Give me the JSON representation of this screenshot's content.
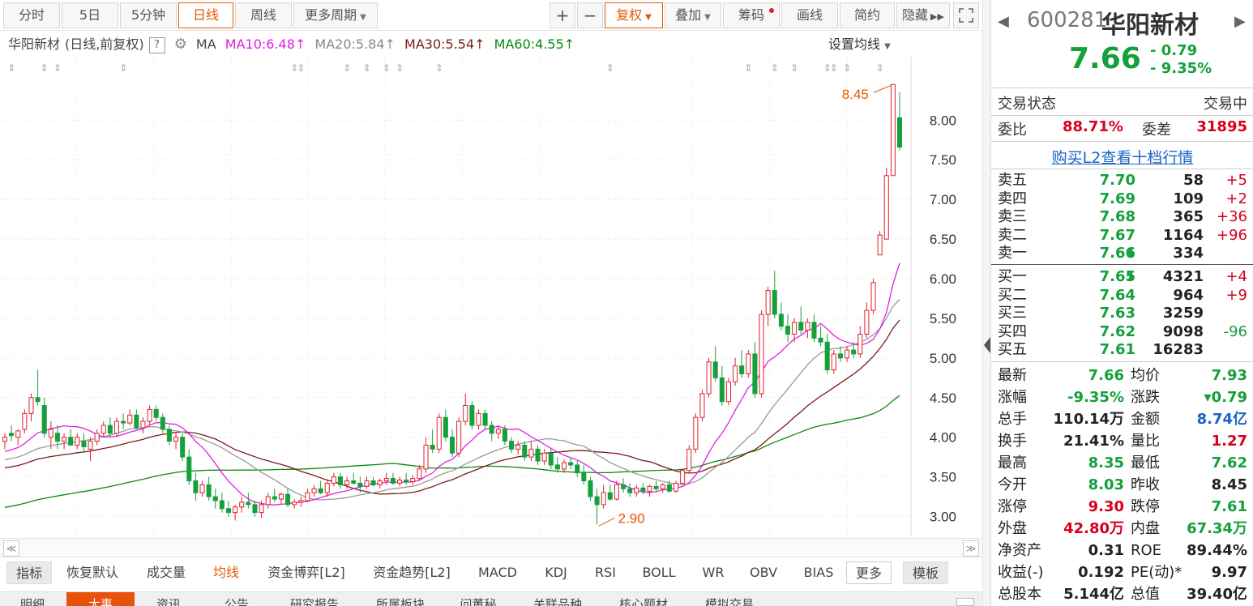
{
  "toolbar": {
    "tabs": [
      "分时",
      "5日",
      "5分钟",
      "日线",
      "周线",
      "更多周期"
    ],
    "active_tab": "日线",
    "zoom_in": "+",
    "zoom_out": "−",
    "fuquan": "复权",
    "overlay": "叠加",
    "chips": "筹码",
    "draw": "画线",
    "simple": "简约",
    "hide": "隐藏"
  },
  "ma_line": {
    "name": "华阳新材",
    "mode": "(日线,前复权)",
    "help": "?",
    "ma_label": "MA",
    "ma10": "MA10:6.48",
    "ma20": "MA20:5.84",
    "ma30": "MA30:5.54",
    "ma60": "MA60:4.55",
    "up_arrow": "↑",
    "settings": "设置均线"
  },
  "colors": {
    "up": "#e0202b",
    "down": "#14a03a",
    "ma10": "#e020e0",
    "ma20": "#999999",
    "ma30": "#7a1a1a",
    "ma60": "#0a8a0a",
    "accent": "#e05a00"
  },
  "chart_data": {
    "type": "candlestick",
    "ymin": 2.75,
    "ymax": 8.8,
    "y_ticks": [
      "8.00",
      "7.50",
      "7.00",
      "6.50",
      "6.00",
      "5.50",
      "5.00",
      "4.50",
      "4.00",
      "3.50",
      "3.00"
    ],
    "annotations": {
      "high": "8.45",
      "low": "2.90"
    },
    "ohlc": [
      [
        3.95,
        4.05,
        3.85,
        4.0
      ],
      [
        4.05,
        4.15,
        3.95,
        4.02
      ],
      [
        4.0,
        4.1,
        3.9,
        4.08
      ],
      [
        4.1,
        4.35,
        4.05,
        4.3
      ],
      [
        4.3,
        4.55,
        4.2,
        4.5
      ],
      [
        4.5,
        4.85,
        4.4,
        4.45
      ],
      [
        4.4,
        4.5,
        4.0,
        4.05
      ],
      [
        4.0,
        4.2,
        3.85,
        4.1
      ],
      [
        4.05,
        4.15,
        3.85,
        3.95
      ],
      [
        3.95,
        4.05,
        3.85,
        4.0
      ],
      [
        4.0,
        4.1,
        3.9,
        3.9
      ],
      [
        3.9,
        4.05,
        3.85,
        4.0
      ],
      [
        3.95,
        4.05,
        3.8,
        3.88
      ],
      [
        3.85,
        4.0,
        3.7,
        3.95
      ],
      [
        3.95,
        4.1,
        3.9,
        4.05
      ],
      [
        4.05,
        4.2,
        4.0,
        4.15
      ],
      [
        4.15,
        4.25,
        4.0,
        4.05
      ],
      [
        4.05,
        4.25,
        4.0,
        4.2
      ],
      [
        4.2,
        4.3,
        4.1,
        4.18
      ],
      [
        4.18,
        4.35,
        4.15,
        4.28
      ],
      [
        4.28,
        4.35,
        4.1,
        4.12
      ],
      [
        4.12,
        4.25,
        4.05,
        4.2
      ],
      [
        4.2,
        4.4,
        4.15,
        4.35
      ],
      [
        4.35,
        4.4,
        4.2,
        4.25
      ],
      [
        4.25,
        4.3,
        4.05,
        4.1
      ],
      [
        4.1,
        4.15,
        3.9,
        3.95
      ],
      [
        3.95,
        4.05,
        3.85,
        4.0
      ],
      [
        4.0,
        4.05,
        3.7,
        3.75
      ],
      [
        3.75,
        3.85,
        3.4,
        3.45
      ],
      [
        3.45,
        3.55,
        3.2,
        3.3
      ],
      [
        3.3,
        3.45,
        3.25,
        3.4
      ],
      [
        3.4,
        3.5,
        3.2,
        3.25
      ],
      [
        3.25,
        3.35,
        3.1,
        3.2
      ],
      [
        3.2,
        3.3,
        3.05,
        3.1
      ],
      [
        3.1,
        3.2,
        3.0,
        3.05
      ],
      [
        3.05,
        3.15,
        2.95,
        3.12
      ],
      [
        3.12,
        3.25,
        3.05,
        3.18
      ],
      [
        3.18,
        3.3,
        3.1,
        3.15
      ],
      [
        3.15,
        3.2,
        3.0,
        3.05
      ],
      [
        3.05,
        3.2,
        2.98,
        3.15
      ],
      [
        3.15,
        3.3,
        3.1,
        3.25
      ],
      [
        3.25,
        3.35,
        3.18,
        3.22
      ],
      [
        3.22,
        3.3,
        3.15,
        3.28
      ],
      [
        3.28,
        3.35,
        3.12,
        3.15
      ],
      [
        3.15,
        3.22,
        3.1,
        3.18
      ],
      [
        3.18,
        3.25,
        3.12,
        3.2
      ],
      [
        3.2,
        3.35,
        3.18,
        3.3
      ],
      [
        3.3,
        3.4,
        3.25,
        3.35
      ],
      [
        3.35,
        3.45,
        3.28,
        3.3
      ],
      [
        3.3,
        3.45,
        3.25,
        3.42
      ],
      [
        3.42,
        3.55,
        3.38,
        3.5
      ],
      [
        3.5,
        3.55,
        3.35,
        3.4
      ],
      [
        3.4,
        3.5,
        3.35,
        3.45
      ],
      [
        3.45,
        3.55,
        3.4,
        3.42
      ],
      [
        3.42,
        3.5,
        3.3,
        3.38
      ],
      [
        3.38,
        3.5,
        3.35,
        3.45
      ],
      [
        3.45,
        3.5,
        3.38,
        3.4
      ],
      [
        3.4,
        3.48,
        3.35,
        3.45
      ],
      [
        3.45,
        3.55,
        3.4,
        3.48
      ],
      [
        3.48,
        3.55,
        3.4,
        3.42
      ],
      [
        3.42,
        3.5,
        3.38,
        3.46
      ],
      [
        3.46,
        3.55,
        3.4,
        3.44
      ],
      [
        3.44,
        3.52,
        3.4,
        3.48
      ],
      [
        3.48,
        3.65,
        3.45,
        3.6
      ],
      [
        3.6,
        4.0,
        3.55,
        3.9
      ],
      [
        3.9,
        4.1,
        3.8,
        3.85
      ],
      [
        3.85,
        4.3,
        3.8,
        4.25
      ],
      [
        4.25,
        4.35,
        3.95,
        4.0
      ],
      [
        4.0,
        4.1,
        3.75,
        3.8
      ],
      [
        3.8,
        4.25,
        3.75,
        4.2
      ],
      [
        4.2,
        4.55,
        4.15,
        4.4
      ],
      [
        4.4,
        4.45,
        4.1,
        4.15
      ],
      [
        4.15,
        4.35,
        4.1,
        4.3
      ],
      [
        4.3,
        4.35,
        4.1,
        4.15
      ],
      [
        4.15,
        4.2,
        3.95,
        4.05
      ],
      [
        4.05,
        4.15,
        3.98,
        4.1
      ],
      [
        4.1,
        4.15,
        3.9,
        3.95
      ],
      [
        3.95,
        4.0,
        3.8,
        3.85
      ],
      [
        3.85,
        3.95,
        3.78,
        3.9
      ],
      [
        3.9,
        3.95,
        3.7,
        3.75
      ],
      [
        3.75,
        3.95,
        3.7,
        3.85
      ],
      [
        3.85,
        3.9,
        3.65,
        3.7
      ],
      [
        3.7,
        3.85,
        3.65,
        3.8
      ],
      [
        3.8,
        3.85,
        3.6,
        3.65
      ],
      [
        3.65,
        3.75,
        3.55,
        3.6
      ],
      [
        3.6,
        3.72,
        3.55,
        3.68
      ],
      [
        3.68,
        3.75,
        3.6,
        3.65
      ],
      [
        3.65,
        3.7,
        3.5,
        3.55
      ],
      [
        3.55,
        3.65,
        3.4,
        3.45
      ],
      [
        3.45,
        3.5,
        3.2,
        3.25
      ],
      [
        3.25,
        3.35,
        2.9,
        3.15
      ],
      [
        3.15,
        3.4,
        3.1,
        3.3
      ],
      [
        3.3,
        3.4,
        3.2,
        3.22
      ],
      [
        3.22,
        3.45,
        3.2,
        3.4
      ],
      [
        3.4,
        3.48,
        3.3,
        3.35
      ],
      [
        3.35,
        3.42,
        3.25,
        3.3
      ],
      [
        3.3,
        3.4,
        3.25,
        3.36
      ],
      [
        3.36,
        3.42,
        3.28,
        3.32
      ],
      [
        3.32,
        3.4,
        3.25,
        3.38
      ],
      [
        3.38,
        3.45,
        3.32,
        3.35
      ],
      [
        3.35,
        3.42,
        3.3,
        3.4
      ],
      [
        3.4,
        3.45,
        3.3,
        3.32
      ],
      [
        3.32,
        3.45,
        3.3,
        3.42
      ],
      [
        3.42,
        3.6,
        3.4,
        3.58
      ],
      [
        3.58,
        3.9,
        3.55,
        3.85
      ],
      [
        3.85,
        4.3,
        3.8,
        4.25
      ],
      [
        4.25,
        4.6,
        4.2,
        4.55
      ],
      [
        4.55,
        5.0,
        4.5,
        4.95
      ],
      [
        4.95,
        5.15,
        4.7,
        4.75
      ],
      [
        4.75,
        4.9,
        4.4,
        4.45
      ],
      [
        4.45,
        4.75,
        4.4,
        4.7
      ],
      [
        4.7,
        5.0,
        4.65,
        4.9
      ],
      [
        4.9,
        5.1,
        4.75,
        4.8
      ],
      [
        4.8,
        5.1,
        4.75,
        5.05
      ],
      [
        5.05,
        5.2,
        4.5,
        4.55
      ],
      [
        4.55,
        5.6,
        4.5,
        5.55
      ],
      [
        5.55,
        5.9,
        5.4,
        5.85
      ],
      [
        5.85,
        6.1,
        5.5,
        5.55
      ],
      [
        5.55,
        5.7,
        5.35,
        5.4
      ],
      [
        5.4,
        5.55,
        5.2,
        5.3
      ],
      [
        5.3,
        5.5,
        5.2,
        5.45
      ],
      [
        5.45,
        5.65,
        5.3,
        5.35
      ],
      [
        5.35,
        5.5,
        5.25,
        5.45
      ],
      [
        5.45,
        5.55,
        5.2,
        5.25
      ],
      [
        5.25,
        5.4,
        5.15,
        5.2
      ],
      [
        5.2,
        5.3,
        4.8,
        4.85
      ],
      [
        4.85,
        5.1,
        4.8,
        5.05
      ],
      [
        5.05,
        5.15,
        4.95,
        5.0
      ],
      [
        5.0,
        5.15,
        4.95,
        5.1
      ],
      [
        5.1,
        5.2,
        5.0,
        5.05
      ],
      [
        5.05,
        5.4,
        5.0,
        5.3
      ],
      [
        5.3,
        5.7,
        5.25,
        5.6
      ],
      [
        5.6,
        6.0,
        5.55,
        5.95
      ],
      [
        6.3,
        6.6,
        6.3,
        6.55
      ],
      [
        6.5,
        7.4,
        6.5,
        7.3
      ],
      [
        7.3,
        8.45,
        7.3,
        8.45
      ],
      [
        8.03,
        8.35,
        7.62,
        7.66
      ]
    ]
  },
  "sidebar": {
    "nav_prev": "◀",
    "nav_next": "▶",
    "code": "600281",
    "name": "华阳新材",
    "price": "7.66",
    "change": "- 0.79",
    "change_pct": "- 9.35%",
    "status_label": "交易状态",
    "status_value": "交易中",
    "weibi_label": "委比",
    "weibi_value": "88.71%",
    "weicha_label": "委差",
    "weicha_value": "31895",
    "l2_link": "购买L2查看十档行情",
    "asks": [
      {
        "label": "卖五",
        "price": "7.70",
        "vol": "58",
        "delta": "+5"
      },
      {
        "label": "卖四",
        "price": "7.69",
        "vol": "109",
        "delta": "+2"
      },
      {
        "label": "卖三",
        "price": "7.68",
        "vol": "365",
        "delta": "+36"
      },
      {
        "label": "卖二",
        "price": "7.67",
        "vol": "1164",
        "delta": "+96"
      },
      {
        "label": "卖一",
        "price": "7.66",
        "vol": "334",
        "delta": "",
        "arrow": "⬇"
      }
    ],
    "bids": [
      {
        "label": "买一",
        "price": "7.65",
        "vol": "4321",
        "delta": "+4",
        "arrow": "⬇"
      },
      {
        "label": "买二",
        "price": "7.64",
        "vol": "964",
        "delta": "+9"
      },
      {
        "label": "买三",
        "price": "7.63",
        "vol": "3259",
        "delta": ""
      },
      {
        "label": "买四",
        "price": "7.62",
        "vol": "9098",
        "delta": "-96"
      },
      {
        "label": "买五",
        "price": "7.61",
        "vol": "16283",
        "delta": ""
      }
    ],
    "stats": [
      {
        "l1": "最新",
        "v1": "7.66",
        "c1": "g",
        "l2": "均价",
        "v2": "7.93",
        "c2": "g"
      },
      {
        "l1": "涨幅",
        "v1": "-9.35%",
        "c1": "g",
        "l2": "涨跌",
        "v2": "▾0.79",
        "c2": "g"
      },
      {
        "l1": "总手",
        "v1": "110.14万",
        "c1": "k",
        "l2": "金额",
        "v2": "8.74亿",
        "c2": "b"
      },
      {
        "l1": "换手",
        "v1": "21.41%",
        "c1": "k",
        "l2": "量比",
        "v2": "1.27",
        "c2": "r"
      },
      {
        "l1": "最高",
        "v1": "8.35",
        "c1": "g",
        "l2": "最低",
        "v2": "7.62",
        "c2": "g"
      },
      {
        "l1": "今开",
        "v1": "8.03",
        "c1": "g",
        "l2": "昨收",
        "v2": "8.45",
        "c2": "k"
      },
      {
        "l1": "涨停",
        "v1": "9.30",
        "c1": "r",
        "l2": "跌停",
        "v2": "7.61",
        "c2": "g"
      },
      {
        "l1": "外盘",
        "v1": "42.80万",
        "c1": "r",
        "l2": "内盘",
        "v2": "67.34万",
        "c2": "g"
      },
      {
        "l1": "净资产",
        "v1": "0.31",
        "c1": "k",
        "l2": "ROE",
        "v2": "89.44%",
        "c2": "k"
      },
      {
        "l1": "收益(-)",
        "v1": "0.192",
        "c1": "k",
        "l2": "PE(动)*",
        "v2": "9.97",
        "c2": "k"
      },
      {
        "l1": "总股本",
        "v1": "5.144亿",
        "c1": "k",
        "l2": "总值",
        "v2": "39.40亿",
        "c2": "k"
      }
    ]
  },
  "indicators": {
    "items": [
      "指标",
      "恢复默认",
      "成交量",
      "均线",
      "资金博弈[L2]",
      "资金趋势[L2]",
      "MACD",
      "KDJ",
      "RSI",
      "BOLL",
      "WR",
      "OBV",
      "BIAS",
      "更多",
      "模板"
    ],
    "selected": "均线"
  },
  "bottom_tabs": [
    "明细",
    "大事",
    "资讯",
    "公告",
    "研究报告",
    "所属板块",
    "问董秘",
    "关联品种",
    "核心题材",
    "模拟交易"
  ]
}
